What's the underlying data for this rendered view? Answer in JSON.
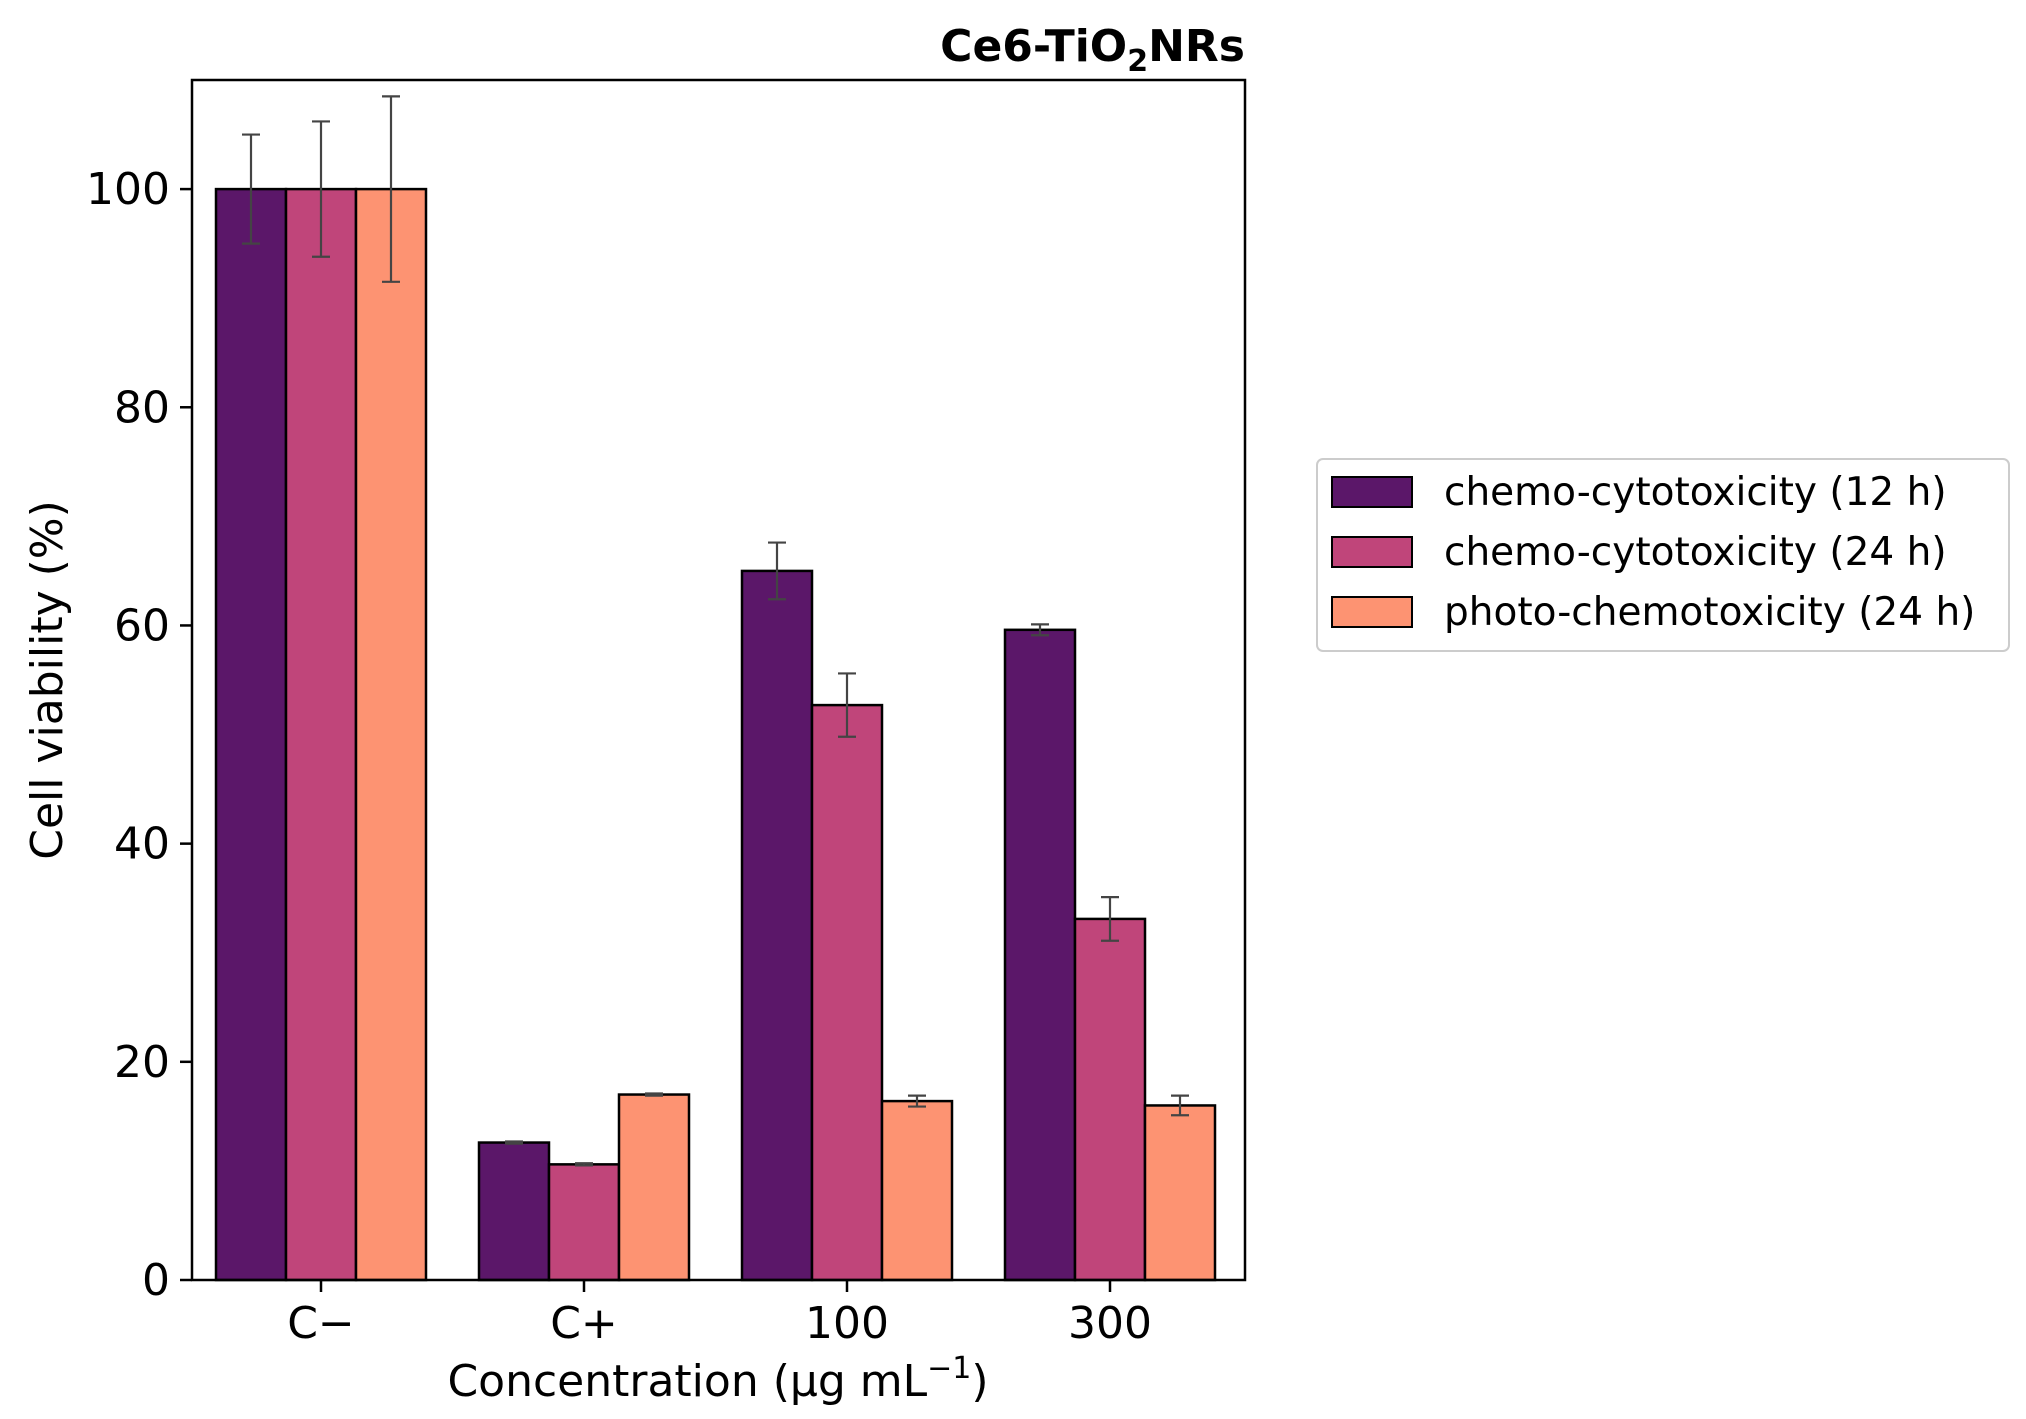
{
  "chart_data": {
    "type": "bar",
    "title": {
      "main": "Ce6-TiO",
      "sub": "2",
      "tail": "NRs"
    },
    "xlabel": {
      "main": "Concentration (μg mL",
      "sup": "−1",
      "tail": ")"
    },
    "ylabel": "Cell viability (%)",
    "ylim": [
      0,
      110
    ],
    "yticks": [
      0,
      20,
      40,
      60,
      80,
      100
    ],
    "categories": [
      "C−",
      "C+",
      "100",
      "300"
    ],
    "series": [
      {
        "name": "chemo-cytotoxicity (12 h)",
        "color": "#5b1769",
        "values": [
          100,
          12.6,
          65.0,
          59.6
        ],
        "errors": [
          5.0,
          0.1,
          2.6,
          0.5
        ]
      },
      {
        "name": "chemo-cytotoxicity (24 h)",
        "color": "#c0457a",
        "values": [
          100,
          10.6,
          52.7,
          33.1
        ],
        "errors": [
          6.2,
          0.1,
          2.9,
          2.0
        ]
      },
      {
        "name": "photo-chemotoxicity (24 h)",
        "color": "#fd9372",
        "values": [
          100,
          17.0,
          16.4,
          16.0
        ],
        "errors": [
          8.5,
          0.1,
          0.5,
          0.9
        ]
      }
    ],
    "legend": {
      "position": "right"
    },
    "grid": false
  }
}
